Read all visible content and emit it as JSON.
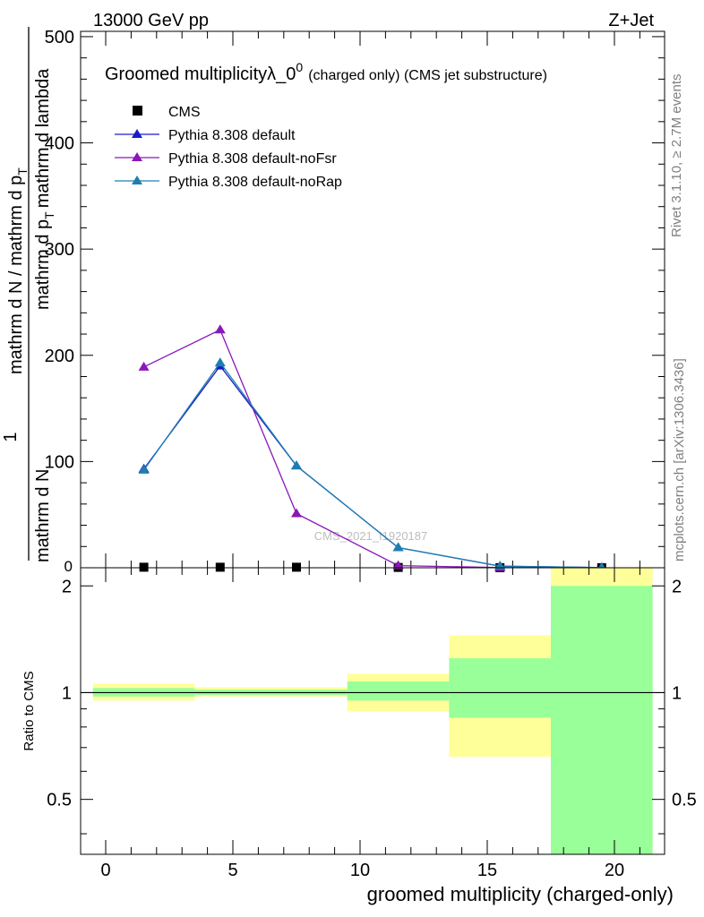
{
  "header": {
    "energy": "13000 GeV pp",
    "process": "Z+Jet"
  },
  "side_labels": {
    "rivet": "Rivet 3.1.10, ≥ 2.7M events",
    "mcplots": "mcplots.cern.ch [arXiv:1306.3436]"
  },
  "watermark": "CMS_2021_I1920187",
  "chart_data": [
    {
      "type": "line",
      "title": "Groomed multiplicityλ_0",
      "title_superscript": "0",
      "title_suffix": "(charged only) (CMS jet substructure)",
      "ylabel_parts": [
        "1",
        "mathrm d N / mathrm d p",
        "T",
        "mathrm d N",
        "mathrm d p",
        "T",
        "mathrm d lambda"
      ],
      "ylim": [
        0,
        505
      ],
      "xlim": [
        -1,
        22
      ],
      "yticks": [
        100,
        200,
        300,
        400,
        500
      ],
      "yticks_small": [
        0
      ],
      "grid": false,
      "legend_position": "top-left",
      "x": [
        1.5,
        4.5,
        7.5,
        11.5,
        15.5,
        19.5
      ],
      "series": [
        {
          "name": "CMS",
          "marker": "square",
          "color": "#000000",
          "values": [
            0.5,
            0.5,
            0.5,
            0.3,
            0.1,
            0.05
          ]
        },
        {
          "name": "Pythia 8.308 default",
          "marker": "triangle",
          "color": "#1a1acc",
          "values": [
            93,
            190,
            96,
            19,
            1.5,
            0.2
          ]
        },
        {
          "name": "Pythia 8.308 default-noFsr",
          "marker": "triangle",
          "color": "#8a17b8",
          "values": [
            189,
            224,
            51,
            2,
            0.2,
            0.02
          ]
        },
        {
          "name": "Pythia 8.308 default-noRap",
          "marker": "triangle",
          "color": "#1c7fb0",
          "values": [
            92,
            193,
            96,
            19,
            1.6,
            0.2
          ]
        }
      ]
    },
    {
      "type": "area",
      "ylabel": "Ratio to CMS",
      "xlabel": "groomed multiplicity (charged-only)",
      "ylim": [
        0.35,
        2.25
      ],
      "yticks": [
        "0.5",
        "1",
        "2"
      ],
      "xticks": [
        "0",
        "5",
        "10",
        "15",
        "20"
      ],
      "log_y": true,
      "reference_value": 1,
      "bins": [
        {
          "low": -0.5,
          "high": 3.5,
          "yellow": [
            0.95,
            1.06
          ],
          "green": [
            0.975,
            1.03
          ]
        },
        {
          "low": 3.5,
          "high": 9.5,
          "yellow": [
            0.975,
            1.035
          ],
          "green": [
            0.985,
            1.02
          ]
        },
        {
          "low": 9.5,
          "high": 13.5,
          "yellow": [
            0.885,
            1.13
          ],
          "green": [
            0.95,
            1.075
          ]
        },
        {
          "low": 13.5,
          "high": 17.5,
          "yellow": [
            0.66,
            1.45
          ],
          "green": [
            0.85,
            1.25
          ]
        },
        {
          "low": 17.5,
          "high": 21.5,
          "yellow": [
            0.35,
            2.25
          ],
          "green": [
            0.35,
            2.0
          ]
        }
      ],
      "colors": {
        "yellow": "#ffff99",
        "green": "#99ff99"
      }
    }
  ]
}
